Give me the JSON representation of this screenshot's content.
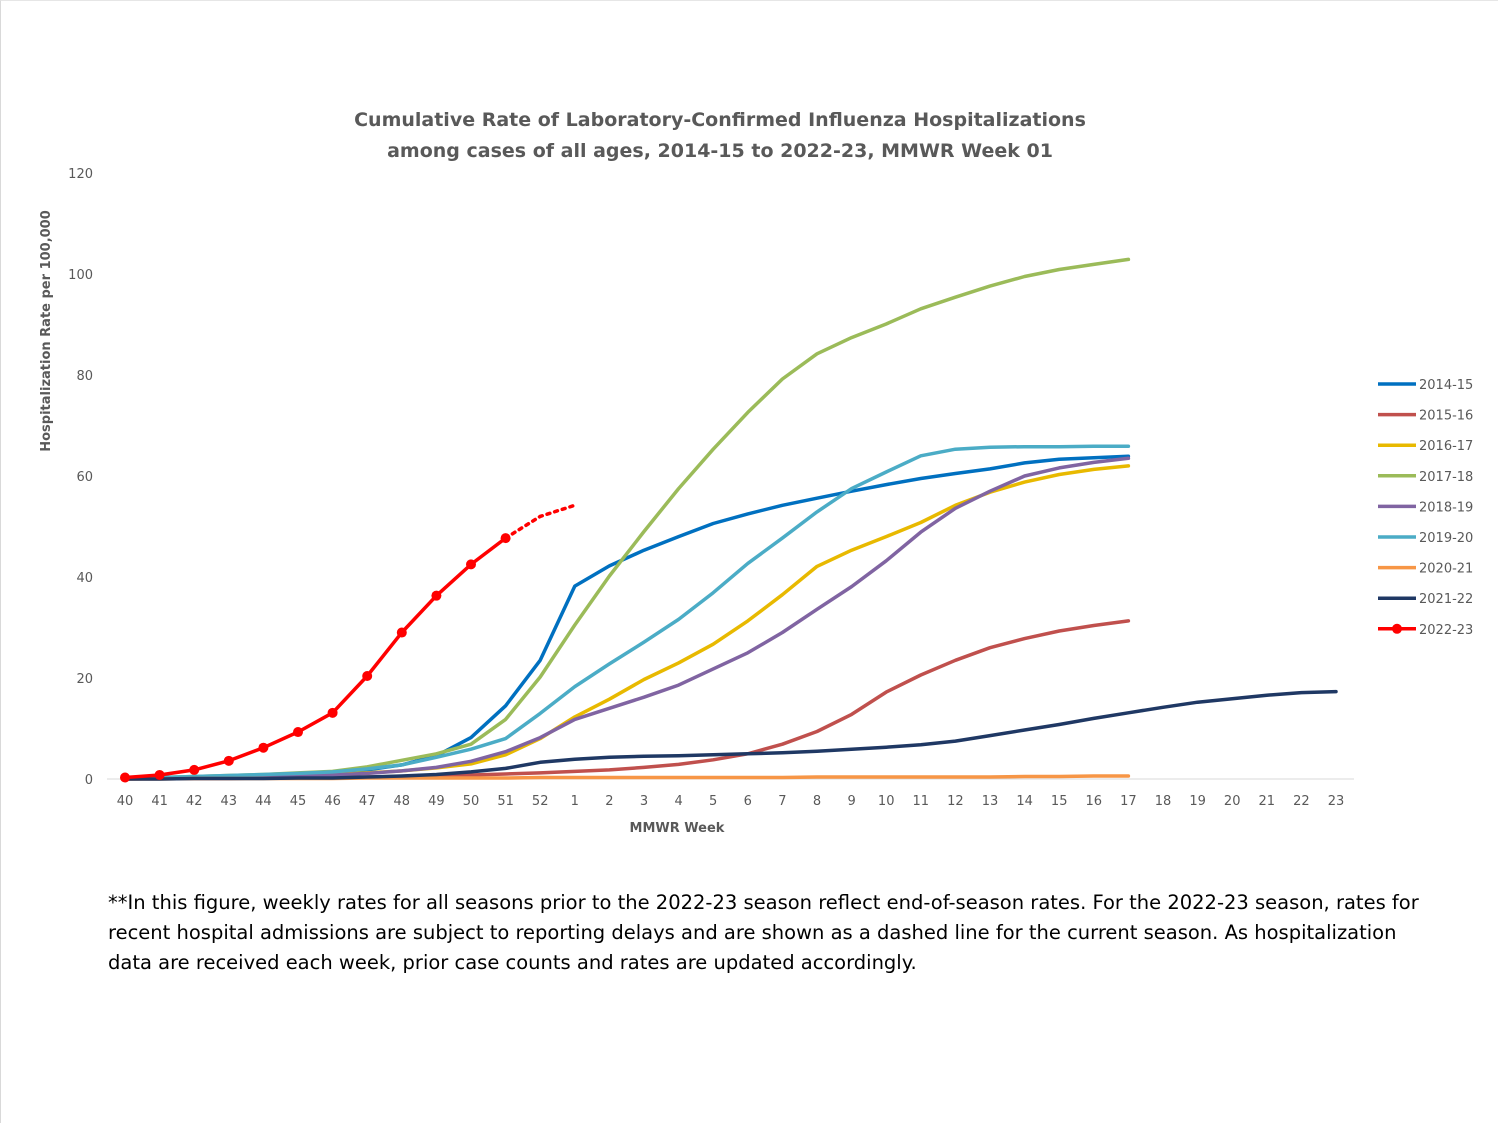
{
  "chart_data": {
    "type": "line",
    "title": "Cumulative Rate of Laboratory-Confirmed Influenza Hospitalizations",
    "subtitle": "among cases of all ages, 2014-15 to 2022-23, MMWR  Week 01",
    "xlabel": "MMWR Week",
    "ylabel": "Hospitalization Rate per 100,000",
    "ylim": [
      0,
      120
    ],
    "yticks": [
      0,
      20,
      40,
      60,
      80,
      100,
      120
    ],
    "grid": "baseline only",
    "legend_position": "right",
    "categories": [
      "40",
      "41",
      "42",
      "43",
      "44",
      "45",
      "46",
      "47",
      "48",
      "49",
      "50",
      "51",
      "52",
      "1",
      "2",
      "3",
      "4",
      "5",
      "6",
      "7",
      "8",
      "9",
      "10",
      "11",
      "12",
      "13",
      "14",
      "15",
      "16",
      "17",
      "18",
      "19",
      "20",
      "21",
      "22",
      "23"
    ],
    "series": [
      {
        "name": "2014-15",
        "color": "#0070C0",
        "style": "solid",
        "values": [
          0.1,
          0.2,
          0.3,
          0.5,
          0.7,
          0.9,
          1.2,
          1.8,
          2.8,
          4.6,
          8.2,
          14.5,
          23.5,
          38.2,
          42.2,
          45.3,
          48.0,
          50.6,
          52.5,
          54.2,
          55.6,
          57.0,
          58.3,
          59.5,
          60.5,
          61.4,
          62.6,
          63.3,
          63.6,
          63.9,
          null,
          null,
          null,
          null,
          null,
          null
        ]
      },
      {
        "name": "2015-16",
        "color": "#C0504D",
        "style": "solid",
        "values": [
          0.0,
          0.1,
          0.1,
          0.1,
          0.2,
          0.2,
          0.3,
          0.4,
          0.5,
          0.6,
          0.8,
          1.0,
          1.2,
          1.5,
          1.8,
          2.3,
          2.9,
          3.8,
          5.0,
          6.9,
          9.4,
          12.8,
          17.2,
          20.6,
          23.5,
          26.0,
          27.8,
          29.3,
          30.4,
          31.3,
          null,
          null,
          null,
          null,
          null,
          null
        ]
      },
      {
        "name": "2016-17",
        "color": "#E8B900",
        "style": "solid",
        "values": [
          0.1,
          0.2,
          0.3,
          0.4,
          0.5,
          0.7,
          0.9,
          1.2,
          1.6,
          2.2,
          3.0,
          4.8,
          8.0,
          12.3,
          15.8,
          19.7,
          23.0,
          26.7,
          31.3,
          36.5,
          42.1,
          45.3,
          48.0,
          50.8,
          54.2,
          56.8,
          58.8,
          60.3,
          61.3,
          62.0,
          null,
          null,
          null,
          null,
          null,
          null
        ]
      },
      {
        "name": "2017-18",
        "color": "#9BBB59",
        "style": "solid",
        "values": [
          0.2,
          0.3,
          0.5,
          0.7,
          0.9,
          1.2,
          1.5,
          2.4,
          3.7,
          5.0,
          6.9,
          11.8,
          20.2,
          30.5,
          40.2,
          49.0,
          57.5,
          65.3,
          72.6,
          79.2,
          84.2,
          87.4,
          90.1,
          93.1,
          95.4,
          97.6,
          99.5,
          100.9,
          101.9,
          102.9,
          null,
          null,
          null,
          null,
          null,
          null
        ]
      },
      {
        "name": "2018-19",
        "color": "#8064A2",
        "style": "solid",
        "values": [
          0.1,
          0.1,
          0.2,
          0.3,
          0.4,
          0.6,
          0.8,
          1.1,
          1.6,
          2.3,
          3.5,
          5.4,
          8.2,
          11.8,
          14.0,
          16.2,
          18.6,
          21.8,
          25.0,
          29.0,
          33.6,
          38.1,
          43.2,
          48.9,
          53.6,
          57.0,
          60.0,
          61.6,
          62.7,
          63.5,
          null,
          null,
          null,
          null,
          null,
          null
        ]
      },
      {
        "name": "2019-20",
        "color": "#4BACC6",
        "style": "solid",
        "values": [
          0.2,
          0.3,
          0.5,
          0.7,
          0.9,
          1.1,
          1.4,
          2.0,
          2.8,
          4.3,
          5.9,
          8.0,
          13.0,
          18.3,
          22.8,
          27.1,
          31.6,
          36.9,
          42.7,
          47.7,
          52.9,
          57.5,
          60.8,
          64.0,
          65.3,
          65.7,
          65.8,
          65.8,
          65.9,
          65.9,
          null,
          null,
          null,
          null,
          null,
          null
        ]
      },
      {
        "name": "2020-21",
        "color": "#F79646",
        "style": "solid",
        "values": [
          0.0,
          0.0,
          0.1,
          0.1,
          0.1,
          0.1,
          0.1,
          0.2,
          0.2,
          0.2,
          0.2,
          0.2,
          0.3,
          0.3,
          0.3,
          0.3,
          0.3,
          0.3,
          0.3,
          0.3,
          0.4,
          0.4,
          0.4,
          0.4,
          0.4,
          0.4,
          0.5,
          0.5,
          0.6,
          0.6,
          null,
          null,
          null,
          null,
          null,
          null
        ]
      },
      {
        "name": "2021-22",
        "color": "#1F3864",
        "style": "solid",
        "values": [
          0.0,
          0.0,
          0.1,
          0.1,
          0.1,
          0.2,
          0.2,
          0.4,
          0.6,
          0.9,
          1.4,
          2.1,
          3.3,
          3.9,
          4.3,
          4.5,
          4.6,
          4.8,
          5.0,
          5.2,
          5.5,
          5.9,
          6.3,
          6.8,
          7.5,
          8.6,
          9.7,
          10.8,
          12.0,
          13.1,
          14.2,
          15.2,
          15.9,
          16.6,
          17.1,
          17.3
        ]
      },
      {
        "name": "2022-23",
        "color": "#FF0000",
        "style": "solid-markers",
        "values": [
          0.3,
          0.8,
          1.8,
          3.6,
          6.2,
          9.3,
          13.1,
          20.4,
          29.0,
          36.3,
          42.5,
          47.7,
          null,
          null,
          null,
          null,
          null,
          null,
          null,
          null,
          null,
          null,
          null,
          null,
          null,
          null,
          null,
          null,
          null,
          null,
          null,
          null,
          null,
          null,
          null,
          null
        ],
        "dotted_extension": [
          null,
          null,
          null,
          null,
          null,
          null,
          null,
          null,
          null,
          null,
          null,
          47.7,
          52.0,
          54.2,
          null,
          null,
          null,
          null,
          null,
          null,
          null,
          null,
          null,
          null,
          null,
          null,
          null,
          null,
          null,
          null,
          null,
          null,
          null,
          null,
          null,
          null
        ]
      }
    ]
  },
  "footnote": "**In this figure, weekly rates for all seasons prior to the 2022-23 season reflect end-of-season rates. For the 2022-23 season, rates for recent hospital admissions are subject to reporting delays and are shown as a dashed line for the current season. As hospitalization data are received each week, prior case counts and rates are updated accordingly."
}
